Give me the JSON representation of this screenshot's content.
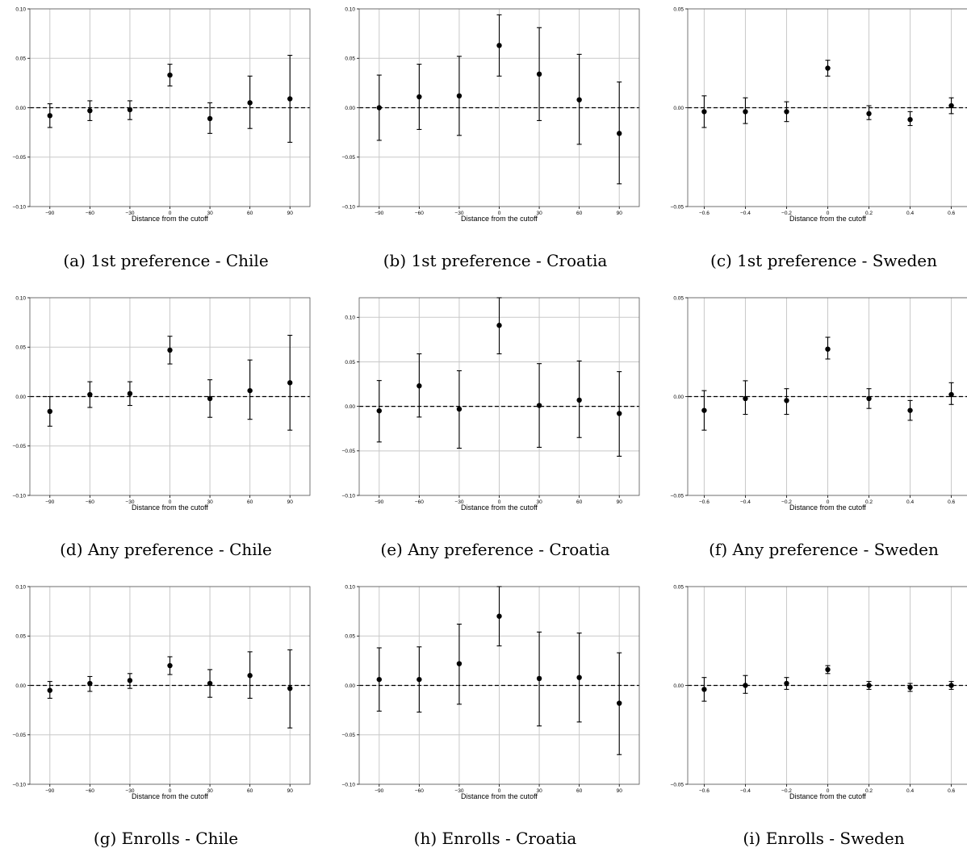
{
  "chart_data": [
    {
      "type": "scatter",
      "caption": "(a) 1st preference - Chile",
      "xlabel": "Distance from the cutoff",
      "x_ticks": [
        -90,
        -60,
        -30,
        0,
        30,
        60,
        90
      ],
      "x_tick_labels": [
        "−90",
        "−60",
        "−30",
        "0",
        "30",
        "60",
        "90"
      ],
      "xlim": [
        -105,
        105
      ],
      "y_ticks": [
        -0.1,
        -0.05,
        0,
        0.05,
        0.1
      ],
      "y_tick_labels": [
        "−0.10",
        "−0.05",
        "0.00",
        "0.05",
        "0.10"
      ],
      "ylim": [
        -0.1,
        0.1
      ],
      "grid": "vertical-and-horizontal",
      "reference_line_y": 0,
      "points": [
        {
          "x": -90,
          "y": -0.008,
          "lo": -0.02,
          "hi": 0.004
        },
        {
          "x": -60,
          "y": -0.003,
          "lo": -0.013,
          "hi": 0.007
        },
        {
          "x": -30,
          "y": -0.002,
          "lo": -0.012,
          "hi": 0.007
        },
        {
          "x": 0,
          "y": 0.033,
          "lo": 0.022,
          "hi": 0.044
        },
        {
          "x": 30,
          "y": -0.011,
          "lo": -0.026,
          "hi": 0.005
        },
        {
          "x": 60,
          "y": 0.005,
          "lo": -0.021,
          "hi": 0.032
        },
        {
          "x": 90,
          "y": 0.009,
          "lo": -0.035,
          "hi": 0.053
        }
      ]
    },
    {
      "type": "scatter",
      "caption": "(b) 1st preference - Croatia",
      "xlabel": "Distance from the cutoff",
      "x_ticks": [
        -90,
        -60,
        -30,
        0,
        30,
        60,
        90
      ],
      "x_tick_labels": [
        "−90",
        "−60",
        "−30",
        "0",
        "30",
        "60",
        "90"
      ],
      "xlim": [
        -105,
        105
      ],
      "y_ticks": [
        -0.1,
        -0.05,
        0,
        0.05,
        0.1
      ],
      "y_tick_labels": [
        "−0.10",
        "−0.05",
        "0.00",
        "0.05",
        "0.10"
      ],
      "ylim": [
        -0.1,
        0.1
      ],
      "grid": "vertical-and-horizontal",
      "reference_line_y": 0,
      "points": [
        {
          "x": -90,
          "y": 0.0,
          "lo": -0.033,
          "hi": 0.033
        },
        {
          "x": -60,
          "y": 0.011,
          "lo": -0.022,
          "hi": 0.044
        },
        {
          "x": -30,
          "y": 0.012,
          "lo": -0.028,
          "hi": 0.052
        },
        {
          "x": 0,
          "y": 0.063,
          "lo": 0.032,
          "hi": 0.094
        },
        {
          "x": 30,
          "y": 0.034,
          "lo": -0.013,
          "hi": 0.081
        },
        {
          "x": 60,
          "y": 0.008,
          "lo": -0.037,
          "hi": 0.054
        },
        {
          "x": 90,
          "y": -0.026,
          "lo": -0.077,
          "hi": 0.026
        }
      ]
    },
    {
      "type": "scatter",
      "caption": "(c) 1st preference - Sweden",
      "xlabel": "Distance from the cutoff",
      "x_ticks": [
        -0.6,
        -0.4,
        -0.2,
        0,
        0.2,
        0.4,
        0.6
      ],
      "x_tick_labels": [
        "−0.6",
        "−0.4",
        "−0.2",
        "0",
        "0.2",
        "0.4",
        "0.6"
      ],
      "xlim": [
        -0.68,
        0.68
      ],
      "y_ticks": [
        -0.05,
        0,
        0.05
      ],
      "y_tick_labels": [
        "−0.05",
        "0.00",
        "0.05"
      ],
      "ylim": [
        -0.05,
        0.05
      ],
      "grid": "vertical-and-horizontal",
      "reference_line_y": 0,
      "points": [
        {
          "x": -0.6,
          "y": -0.002,
          "lo": -0.01,
          "hi": 0.006
        },
        {
          "x": -0.4,
          "y": -0.002,
          "lo": -0.008,
          "hi": 0.005
        },
        {
          "x": -0.2,
          "y": -0.002,
          "lo": -0.007,
          "hi": 0.003
        },
        {
          "x": 0,
          "y": 0.02,
          "lo": 0.016,
          "hi": 0.024
        },
        {
          "x": 0.2,
          "y": -0.003,
          "lo": -0.006,
          "hi": 0.001
        },
        {
          "x": 0.4,
          "y": -0.006,
          "lo": -0.009,
          "hi": -0.002
        },
        {
          "x": 0.6,
          "y": 0.001,
          "lo": -0.003,
          "hi": 0.005
        }
      ]
    },
    {
      "type": "scatter",
      "caption": "(d) Any preference - Chile",
      "xlabel": "Distance from the cutoff",
      "x_ticks": [
        -90,
        -60,
        -30,
        0,
        30,
        60,
        90
      ],
      "x_tick_labels": [
        "−90",
        "−60",
        "−30",
        "0",
        "30",
        "60",
        "90"
      ],
      "xlim": [
        -105,
        105
      ],
      "y_ticks": [
        -0.1,
        -0.05,
        0,
        0.05,
        0.1
      ],
      "y_tick_labels": [
        "−0.10",
        "−0.05",
        "0.00",
        "0.05",
        "0.10"
      ],
      "ylim": [
        -0.1,
        0.1
      ],
      "grid": "vertical-and-horizontal",
      "reference_line_y": 0,
      "points": [
        {
          "x": -90,
          "y": -0.015,
          "lo": -0.03,
          "hi": 0.0
        },
        {
          "x": -60,
          "y": 0.002,
          "lo": -0.011,
          "hi": 0.015
        },
        {
          "x": -30,
          "y": 0.003,
          "lo": -0.009,
          "hi": 0.015
        },
        {
          "x": 0,
          "y": 0.047,
          "lo": 0.033,
          "hi": 0.061
        },
        {
          "x": 30,
          "y": -0.002,
          "lo": -0.021,
          "hi": 0.017
        },
        {
          "x": 60,
          "y": 0.006,
          "lo": -0.023,
          "hi": 0.037
        },
        {
          "x": 90,
          "y": 0.014,
          "lo": -0.034,
          "hi": 0.062
        }
      ]
    },
    {
      "type": "scatter",
      "caption": "(e) Any preference - Croatia",
      "xlabel": "Distance from the cutoff",
      "x_ticks": [
        -90,
        -60,
        -30,
        0,
        30,
        60,
        90
      ],
      "x_tick_labels": [
        "−90",
        "−60",
        "−30",
        "0",
        "30",
        "60",
        "90"
      ],
      "xlim": [
        -105,
        105
      ],
      "y_ticks": [
        -0.1,
        -0.05,
        0,
        0.05,
        0.1
      ],
      "y_tick_labels": [
        "−0.10",
        "−0.05",
        "0.00",
        "0.05",
        "0.10"
      ],
      "ylim": [
        -0.1,
        0.122
      ],
      "grid": "vertical-and-horizontal",
      "reference_line_y": 0,
      "points": [
        {
          "x": -90,
          "y": -0.005,
          "lo": -0.04,
          "hi": 0.029
        },
        {
          "x": -60,
          "y": 0.023,
          "lo": -0.012,
          "hi": 0.059
        },
        {
          "x": -30,
          "y": -0.003,
          "lo": -0.047,
          "hi": 0.04
        },
        {
          "x": 0,
          "y": 0.091,
          "lo": 0.059,
          "hi": 0.122
        },
        {
          "x": 30,
          "y": 0.001,
          "lo": -0.046,
          "hi": 0.048
        },
        {
          "x": 60,
          "y": 0.007,
          "lo": -0.035,
          "hi": 0.051
        },
        {
          "x": 90,
          "y": -0.008,
          "lo": -0.056,
          "hi": 0.039
        }
      ]
    },
    {
      "type": "scatter",
      "caption": "(f) Any preference - Sweden",
      "xlabel": "Distance from the cutoff",
      "x_ticks": [
        -0.6,
        -0.4,
        -0.2,
        0,
        0.2,
        0.4,
        0.6
      ],
      "x_tick_labels": [
        "−0.6",
        "−0.4",
        "−0.2",
        "0",
        "0.2",
        "0.4",
        "0.6"
      ],
      "xlim": [
        -0.68,
        0.68
      ],
      "y_ticks": [
        -0.05,
        0,
        0.05
      ],
      "y_tick_labels": [
        "−0.05",
        "0.00",
        "0.05"
      ],
      "ylim": [
        -0.05,
        0.05
      ],
      "grid": "vertical-and-horizontal",
      "reference_line_y": 0,
      "points": [
        {
          "x": -0.6,
          "y": -0.007,
          "lo": -0.017,
          "hi": 0.003
        },
        {
          "x": -0.4,
          "y": -0.001,
          "lo": -0.009,
          "hi": 0.008
        },
        {
          "x": -0.2,
          "y": -0.002,
          "lo": -0.009,
          "hi": 0.004
        },
        {
          "x": 0,
          "y": 0.024,
          "lo": 0.019,
          "hi": 0.03
        },
        {
          "x": 0.2,
          "y": -0.001,
          "lo": -0.006,
          "hi": 0.004
        },
        {
          "x": 0.4,
          "y": -0.007,
          "lo": -0.012,
          "hi": -0.002
        },
        {
          "x": 0.6,
          "y": 0.001,
          "lo": -0.004,
          "hi": 0.007
        }
      ]
    },
    {
      "type": "scatter",
      "caption": "(g) Enrolls - Chile",
      "xlabel": "Distance from the cutoff",
      "x_ticks": [
        -90,
        -60,
        -30,
        0,
        30,
        60,
        90
      ],
      "x_tick_labels": [
        "−90",
        "−60",
        "−30",
        "0",
        "30",
        "60",
        "90"
      ],
      "xlim": [
        -105,
        105
      ],
      "y_ticks": [
        -0.1,
        -0.05,
        0,
        0.05,
        0.1
      ],
      "y_tick_labels": [
        "−0.10",
        "−0.05",
        "0.00",
        "0.05",
        "0.10"
      ],
      "ylim": [
        -0.1,
        0.1
      ],
      "grid": "vertical-and-horizontal",
      "reference_line_y": 0,
      "points": [
        {
          "x": -90,
          "y": -0.005,
          "lo": -0.013,
          "hi": 0.004
        },
        {
          "x": -60,
          "y": 0.002,
          "lo": -0.006,
          "hi": 0.009
        },
        {
          "x": -30,
          "y": 0.005,
          "lo": -0.003,
          "hi": 0.012
        },
        {
          "x": 0,
          "y": 0.02,
          "lo": 0.011,
          "hi": 0.029
        },
        {
          "x": 30,
          "y": 0.002,
          "lo": -0.012,
          "hi": 0.016
        },
        {
          "x": 60,
          "y": 0.01,
          "lo": -0.013,
          "hi": 0.034
        },
        {
          "x": 90,
          "y": -0.003,
          "lo": -0.043,
          "hi": 0.036
        }
      ]
    },
    {
      "type": "scatter",
      "caption": "(h) Enrolls - Croatia",
      "xlabel": "Distance from the cutoff",
      "x_ticks": [
        -90,
        -60,
        -30,
        0,
        30,
        60,
        90
      ],
      "x_tick_labels": [
        "−90",
        "−60",
        "−30",
        "0",
        "30",
        "60",
        "90"
      ],
      "xlim": [
        -105,
        105
      ],
      "y_ticks": [
        -0.1,
        -0.05,
        0,
        0.05,
        0.1
      ],
      "y_tick_labels": [
        "−0.10",
        "−0.05",
        "0.00",
        "0.05",
        "0.10"
      ],
      "ylim": [
        -0.1,
        0.1
      ],
      "grid": "vertical-and-horizontal",
      "reference_line_y": 0,
      "points": [
        {
          "x": -90,
          "y": 0.006,
          "lo": -0.026,
          "hi": 0.038
        },
        {
          "x": -60,
          "y": 0.006,
          "lo": -0.027,
          "hi": 0.039
        },
        {
          "x": -30,
          "y": 0.022,
          "lo": -0.019,
          "hi": 0.062
        },
        {
          "x": 0,
          "y": 0.07,
          "lo": 0.04,
          "hi": 0.1
        },
        {
          "x": 30,
          "y": 0.007,
          "lo": -0.041,
          "hi": 0.054
        },
        {
          "x": 60,
          "y": 0.008,
          "lo": -0.037,
          "hi": 0.053
        },
        {
          "x": 90,
          "y": -0.018,
          "lo": -0.07,
          "hi": 0.033
        }
      ]
    },
    {
      "type": "scatter",
      "caption": "(i) Enrolls - Sweden",
      "xlabel": "Distance from the cutoff",
      "x_ticks": [
        -0.6,
        -0.4,
        -0.2,
        0,
        0.2,
        0.4,
        0.6
      ],
      "x_tick_labels": [
        "−0.6",
        "−0.4",
        "−0.2",
        "0",
        "0.2",
        "0.4",
        "0.6"
      ],
      "xlim": [
        -0.68,
        0.68
      ],
      "y_ticks": [
        -0.05,
        0,
        0.05
      ],
      "y_tick_labels": [
        "−0.05",
        "0.00",
        "0.05"
      ],
      "ylim": [
        -0.05,
        0.05
      ],
      "grid": "vertical-and-horizontal",
      "reference_line_y": 0,
      "points": [
        {
          "x": -0.6,
          "y": -0.002,
          "lo": -0.008,
          "hi": 0.004
        },
        {
          "x": -0.4,
          "y": 0.0,
          "lo": -0.004,
          "hi": 0.005
        },
        {
          "x": -0.2,
          "y": 0.001,
          "lo": -0.002,
          "hi": 0.004
        },
        {
          "x": 0,
          "y": 0.008,
          "lo": 0.006,
          "hi": 0.01
        },
        {
          "x": 0.2,
          "y": 0.0,
          "lo": -0.002,
          "hi": 0.002
        },
        {
          "x": 0.4,
          "y": -0.001,
          "lo": -0.003,
          "hi": 0.001
        },
        {
          "x": 0.6,
          "y": 0.0,
          "lo": -0.002,
          "hi": 0.002
        }
      ]
    }
  ]
}
